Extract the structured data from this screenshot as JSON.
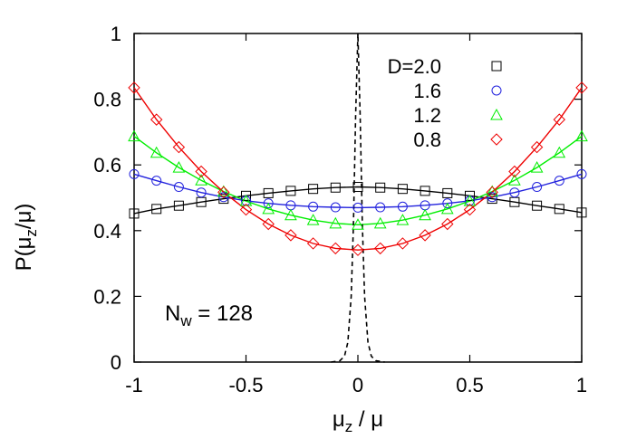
{
  "chart_data": {
    "type": "line",
    "title": "",
    "xlabel_main": "μ",
    "xlabel_sub": "z",
    "xlabel_rest": " / μ",
    "ylabel_pre": "P(μ",
    "ylabel_sub": "z",
    "ylabel_post": "/μ)",
    "xlim": [
      -1,
      1
    ],
    "ylim": [
      0,
      1
    ],
    "x_ticks": [
      -1,
      -0.5,
      0,
      0.5,
      1
    ],
    "x_tick_labels": [
      "-1",
      "-0.5",
      "0",
      "0.5",
      "1"
    ],
    "y_ticks": [
      0,
      0.2,
      0.4,
      0.6,
      0.8,
      1
    ],
    "y_tick_labels": [
      "0",
      "0.2",
      "0.4",
      "0.6",
      "0.8",
      "1"
    ],
    "grid": false,
    "legend_position": "top-right",
    "annotation": {
      "main": "N",
      "sub": "w",
      "rest": " = 128"
    },
    "series": [
      {
        "name": "D=2.0",
        "marker": "square",
        "color": "#000000",
        "x": [
          -1,
          -0.9,
          -0.8,
          -0.7,
          -0.6,
          -0.5,
          -0.4,
          -0.3,
          -0.2,
          -0.1,
          0,
          0.1,
          0.2,
          0.3,
          0.4,
          0.5,
          0.6,
          0.7,
          0.8,
          0.9,
          1
        ],
        "y": [
          0.452,
          0.466,
          0.476,
          0.487,
          0.497,
          0.506,
          0.514,
          0.521,
          0.527,
          0.531,
          0.533,
          0.531,
          0.527,
          0.521,
          0.514,
          0.506,
          0.497,
          0.487,
          0.476,
          0.466,
          0.455
        ]
      },
      {
        "name": "1.6",
        "marker": "circle",
        "color": "#2222dd",
        "x": [
          -1,
          -0.9,
          -0.8,
          -0.7,
          -0.6,
          -0.5,
          -0.4,
          -0.3,
          -0.2,
          -0.1,
          0,
          0.1,
          0.2,
          0.3,
          0.4,
          0.5,
          0.6,
          0.7,
          0.8,
          0.9,
          1
        ],
        "y": [
          0.572,
          0.552,
          0.533,
          0.516,
          0.502,
          0.491,
          0.483,
          0.477,
          0.473,
          0.471,
          0.47,
          0.471,
          0.473,
          0.477,
          0.483,
          0.491,
          0.502,
          0.516,
          0.533,
          0.552,
          0.572
        ]
      },
      {
        "name": "1.2",
        "marker": "triangle",
        "color": "#00ee00",
        "x": [
          -1,
          -0.9,
          -0.8,
          -0.7,
          -0.6,
          -0.5,
          -0.4,
          -0.3,
          -0.2,
          -0.1,
          0,
          0.1,
          0.2,
          0.3,
          0.4,
          0.5,
          0.6,
          0.7,
          0.8,
          0.9,
          1
        ],
        "y": [
          0.687,
          0.637,
          0.592,
          0.553,
          0.519,
          0.49,
          0.466,
          0.447,
          0.432,
          0.422,
          0.418,
          0.422,
          0.432,
          0.447,
          0.466,
          0.49,
          0.519,
          0.553,
          0.592,
          0.637,
          0.687
        ]
      },
      {
        "name": "0.8",
        "marker": "diamond",
        "color": "#ee0000",
        "x": [
          -1,
          -0.9,
          -0.8,
          -0.7,
          -0.6,
          -0.5,
          -0.4,
          -0.3,
          -0.2,
          -0.1,
          0,
          0.1,
          0.2,
          0.3,
          0.4,
          0.5,
          0.6,
          0.7,
          0.8,
          0.9,
          1
        ],
        "y": [
          0.835,
          0.738,
          0.654,
          0.58,
          0.517,
          0.464,
          0.42,
          0.386,
          0.361,
          0.346,
          0.341,
          0.346,
          0.361,
          0.386,
          0.42,
          0.464,
          0.517,
          0.58,
          0.654,
          0.738,
          0.835
        ]
      }
    ],
    "dashed_curve": {
      "style": "dashed",
      "color": "#000000",
      "x": [
        -0.12,
        -0.08,
        -0.06,
        -0.045,
        -0.03,
        -0.02,
        -0.01,
        0,
        0.01,
        0.02,
        0.03,
        0.045,
        0.06,
        0.08,
        0.12
      ],
      "y": [
        0,
        0.004,
        0.018,
        0.06,
        0.2,
        0.42,
        0.75,
        1.0,
        0.75,
        0.42,
        0.2,
        0.06,
        0.018,
        0.004,
        0
      ]
    }
  }
}
